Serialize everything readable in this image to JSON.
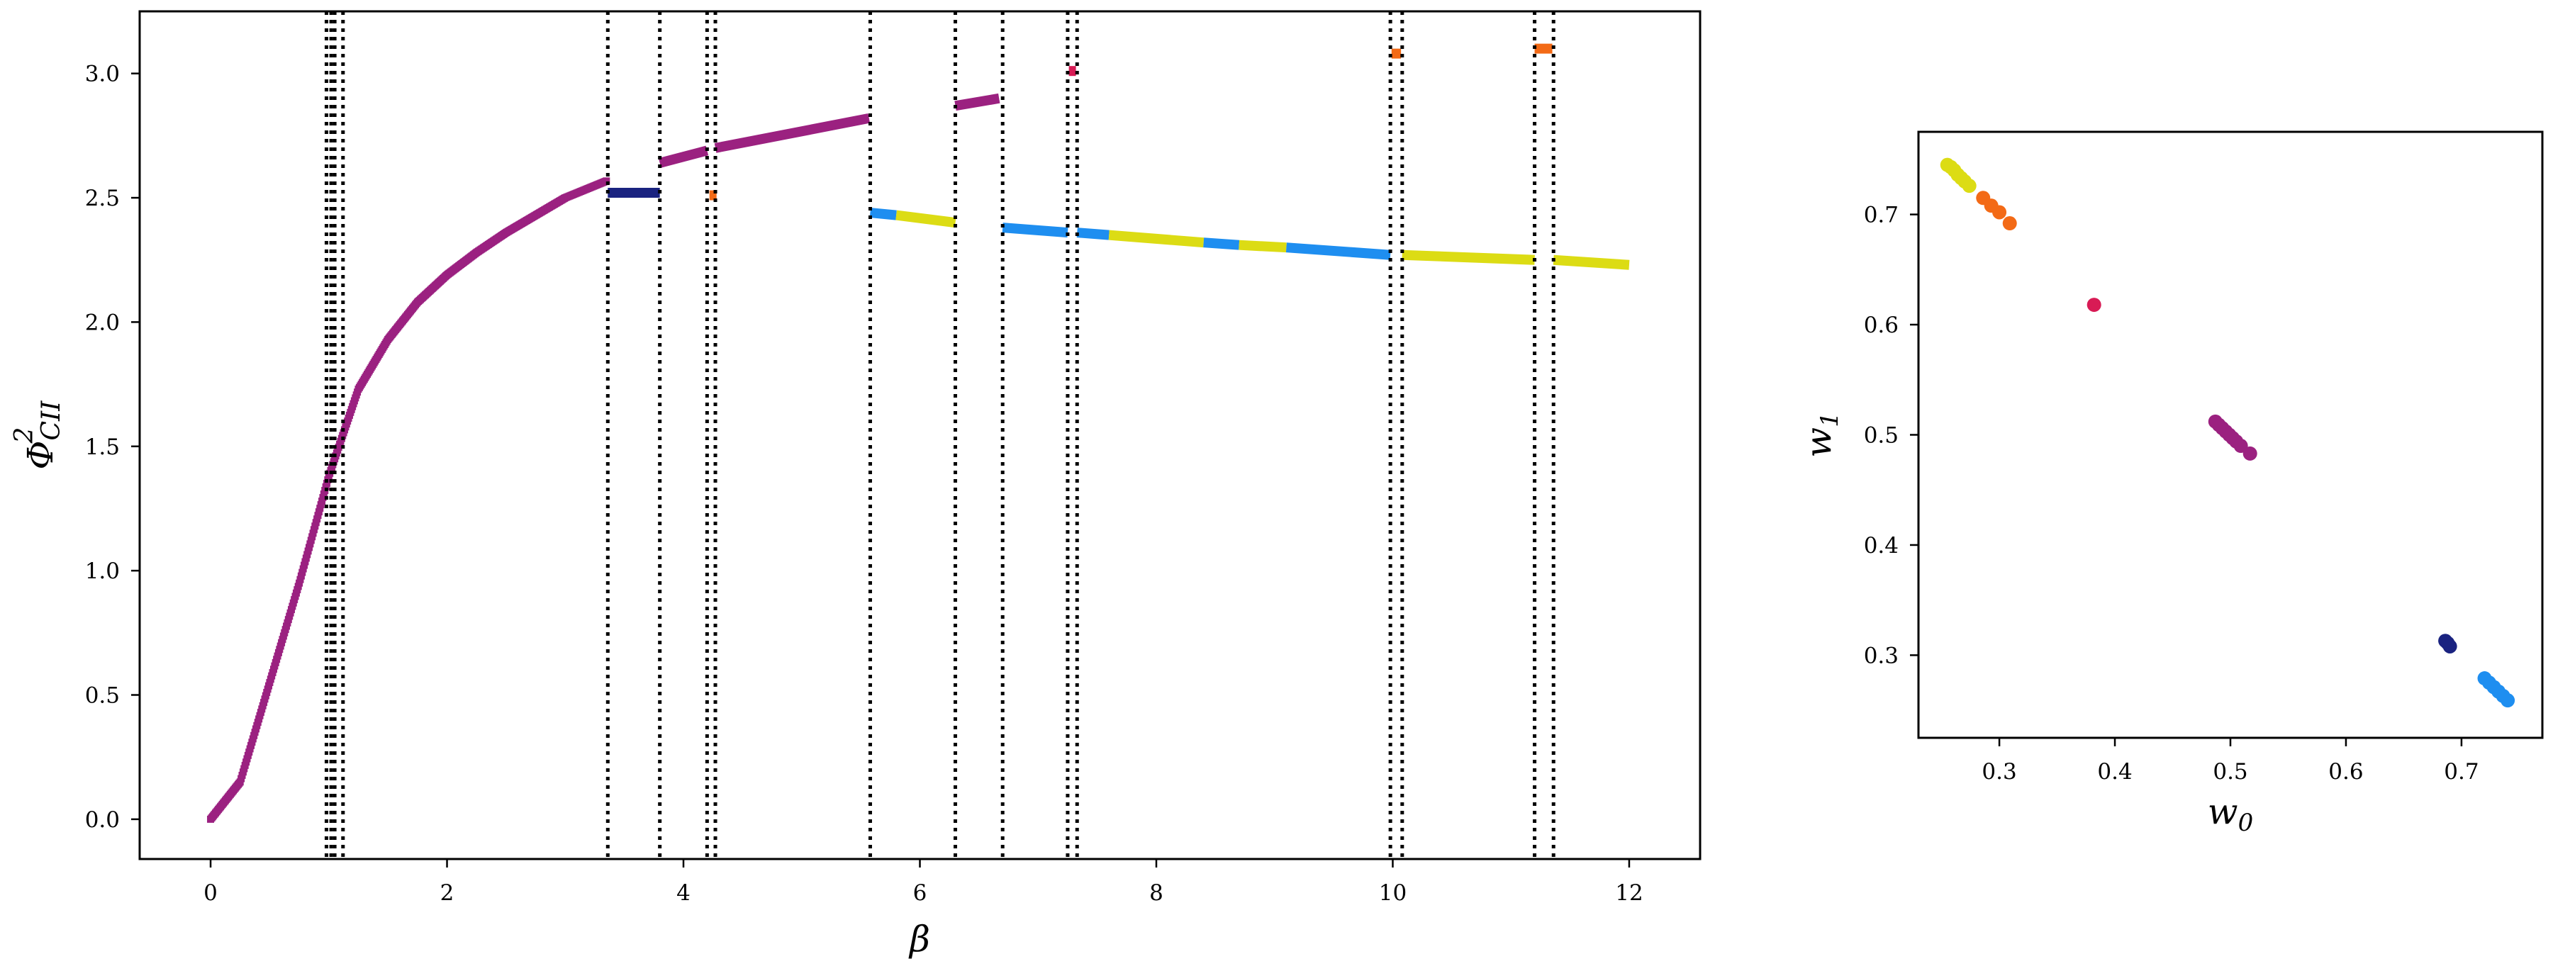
{
  "chart_data": [
    {
      "type": "scatter",
      "xlabel": "β",
      "ylabel": {
        "base": "Φ",
        "sup": "2",
        "sub": "CII"
      },
      "xlim": [
        -0.6,
        12.6
      ],
      "ylim": [
        -0.16,
        3.25
      ],
      "xticks": [
        0,
        2,
        4,
        6,
        8,
        10,
        12
      ],
      "yticks": [
        0.0,
        0.5,
        1.0,
        1.5,
        2.0,
        2.5,
        3.0
      ],
      "xtick_labels": [
        "0",
        "2",
        "4",
        "6",
        "8",
        "10",
        "12"
      ],
      "ytick_labels": [
        "0.0",
        "0.5",
        "1.0",
        "1.5",
        "2.0",
        "2.5",
        "3.0"
      ],
      "grid": false,
      "vlines_style": "dotted black",
      "vlines": [
        0.98,
        1.02,
        1.05,
        1.12,
        3.36,
        3.8,
        4.2,
        4.27,
        5.58,
        6.3,
        6.7,
        7.25,
        7.33,
        9.98,
        10.08,
        11.2,
        11.36
      ],
      "colors": {
        "magenta": "#9b2180",
        "navy": "#1a2380",
        "orange": "#f36a16",
        "crimson": "#d81b55",
        "azure": "#1e8ef0",
        "yellow": "#dcdc14"
      },
      "curve": {
        "color": "magenta",
        "points": [
          [
            0.0,
            0.0
          ],
          [
            0.25,
            0.15
          ],
          [
            0.5,
            0.55
          ],
          [
            0.75,
            0.95
          ],
          [
            1.0,
            1.38
          ],
          [
            1.25,
            1.73
          ],
          [
            1.5,
            1.93
          ],
          [
            1.75,
            2.08
          ],
          [
            2.0,
            2.19
          ],
          [
            2.25,
            2.28
          ],
          [
            2.5,
            2.36
          ],
          [
            2.75,
            2.43
          ],
          [
            3.0,
            2.5
          ],
          [
            3.36,
            2.57
          ]
        ]
      },
      "segments": [
        {
          "color": "navy",
          "x": [
            3.36,
            3.8
          ],
          "y": [
            2.52,
            2.52
          ]
        },
        {
          "color": "orange",
          "x": [
            4.22,
            4.28
          ],
          "y": [
            2.51,
            2.51
          ]
        },
        {
          "color": "magenta",
          "x": [
            3.8,
            4.2
          ],
          "y": [
            2.64,
            2.69
          ]
        },
        {
          "color": "magenta",
          "x": [
            4.27,
            5.57
          ],
          "y": [
            2.7,
            2.82
          ]
        },
        {
          "color": "magenta",
          "x": [
            6.3,
            6.67
          ],
          "y": [
            2.87,
            2.9
          ]
        },
        {
          "color": "crimson",
          "x": [
            7.26,
            7.32
          ],
          "y": [
            3.01,
            3.01
          ]
        },
        {
          "color": "orange",
          "x": [
            9.99,
            10.07
          ],
          "y": [
            3.08,
            3.08
          ]
        },
        {
          "color": "orange",
          "x": [
            11.2,
            11.35
          ],
          "y": [
            3.1,
            3.1
          ]
        },
        {
          "color": "azure",
          "x": [
            5.58,
            5.8
          ],
          "y": [
            2.44,
            2.43
          ]
        },
        {
          "color": "yellow",
          "x": [
            5.8,
            6.3
          ],
          "y": [
            2.43,
            2.4
          ]
        },
        {
          "color": "azure",
          "x": [
            6.7,
            7.25
          ],
          "y": [
            2.38,
            2.36
          ]
        },
        {
          "color": "azure",
          "x": [
            7.33,
            7.6
          ],
          "y": [
            2.36,
            2.35
          ]
        },
        {
          "color": "yellow",
          "x": [
            7.6,
            8.4
          ],
          "y": [
            2.35,
            2.32
          ]
        },
        {
          "color": "azure",
          "x": [
            8.4,
            8.7
          ],
          "y": [
            2.32,
            2.31
          ]
        },
        {
          "color": "yellow",
          "x": [
            8.7,
            9.1
          ],
          "y": [
            2.31,
            2.3
          ]
        },
        {
          "color": "azure",
          "x": [
            9.1,
            9.98
          ],
          "y": [
            2.3,
            2.27
          ]
        },
        {
          "color": "yellow",
          "x": [
            10.08,
            11.2
          ],
          "y": [
            2.27,
            2.25
          ]
        },
        {
          "color": "yellow",
          "x": [
            11.36,
            12.0
          ],
          "y": [
            2.25,
            2.23
          ]
        }
      ]
    },
    {
      "type": "scatter",
      "xlabel": "w0",
      "ylabel": "w1",
      "xlim": [
        0.23,
        0.77
      ],
      "ylim": [
        0.225,
        0.775
      ],
      "xticks": [
        0.3,
        0.4,
        0.5,
        0.6,
        0.7
      ],
      "yticks": [
        0.3,
        0.4,
        0.5,
        0.6,
        0.7
      ],
      "xtick_labels": [
        "0.3",
        "0.4",
        "0.5",
        "0.6",
        "0.7"
      ],
      "ytick_labels": [
        "0.3",
        "0.4",
        "0.5",
        "0.6",
        "0.7"
      ],
      "grid": false,
      "clusters": [
        {
          "color": "#dcdc14",
          "points": [
            [
              0.255,
              0.745
            ],
            [
              0.258,
              0.743
            ],
            [
              0.261,
              0.74
            ],
            [
              0.264,
              0.736
            ],
            [
              0.267,
              0.733
            ],
            [
              0.27,
              0.73
            ],
            [
              0.274,
              0.726
            ]
          ]
        },
        {
          "color": "#f36a16",
          "points": [
            [
              0.286,
              0.715
            ],
            [
              0.293,
              0.708
            ],
            [
              0.3,
              0.702
            ],
            [
              0.309,
              0.692
            ]
          ]
        },
        {
          "color": "#d81b55",
          "points": [
            [
              0.382,
              0.618
            ]
          ]
        },
        {
          "color": "#9b2180",
          "points": [
            [
              0.487,
              0.512
            ],
            [
              0.49,
              0.509
            ],
            [
              0.493,
              0.506
            ],
            [
              0.496,
              0.503
            ],
            [
              0.499,
              0.5
            ],
            [
              0.502,
              0.497
            ],
            [
              0.505,
              0.494
            ],
            [
              0.509,
              0.49
            ],
            [
              0.517,
              0.483
            ]
          ]
        },
        {
          "color": "#1a2380",
          "points": [
            [
              0.686,
              0.313
            ],
            [
              0.688,
              0.311
            ],
            [
              0.69,
              0.308
            ]
          ]
        },
        {
          "color": "#1e8ef0",
          "points": [
            [
              0.72,
              0.279
            ],
            [
              0.724,
              0.275
            ],
            [
              0.728,
              0.271
            ],
            [
              0.732,
              0.267
            ],
            [
              0.736,
              0.263
            ],
            [
              0.74,
              0.259
            ]
          ]
        }
      ]
    }
  ]
}
